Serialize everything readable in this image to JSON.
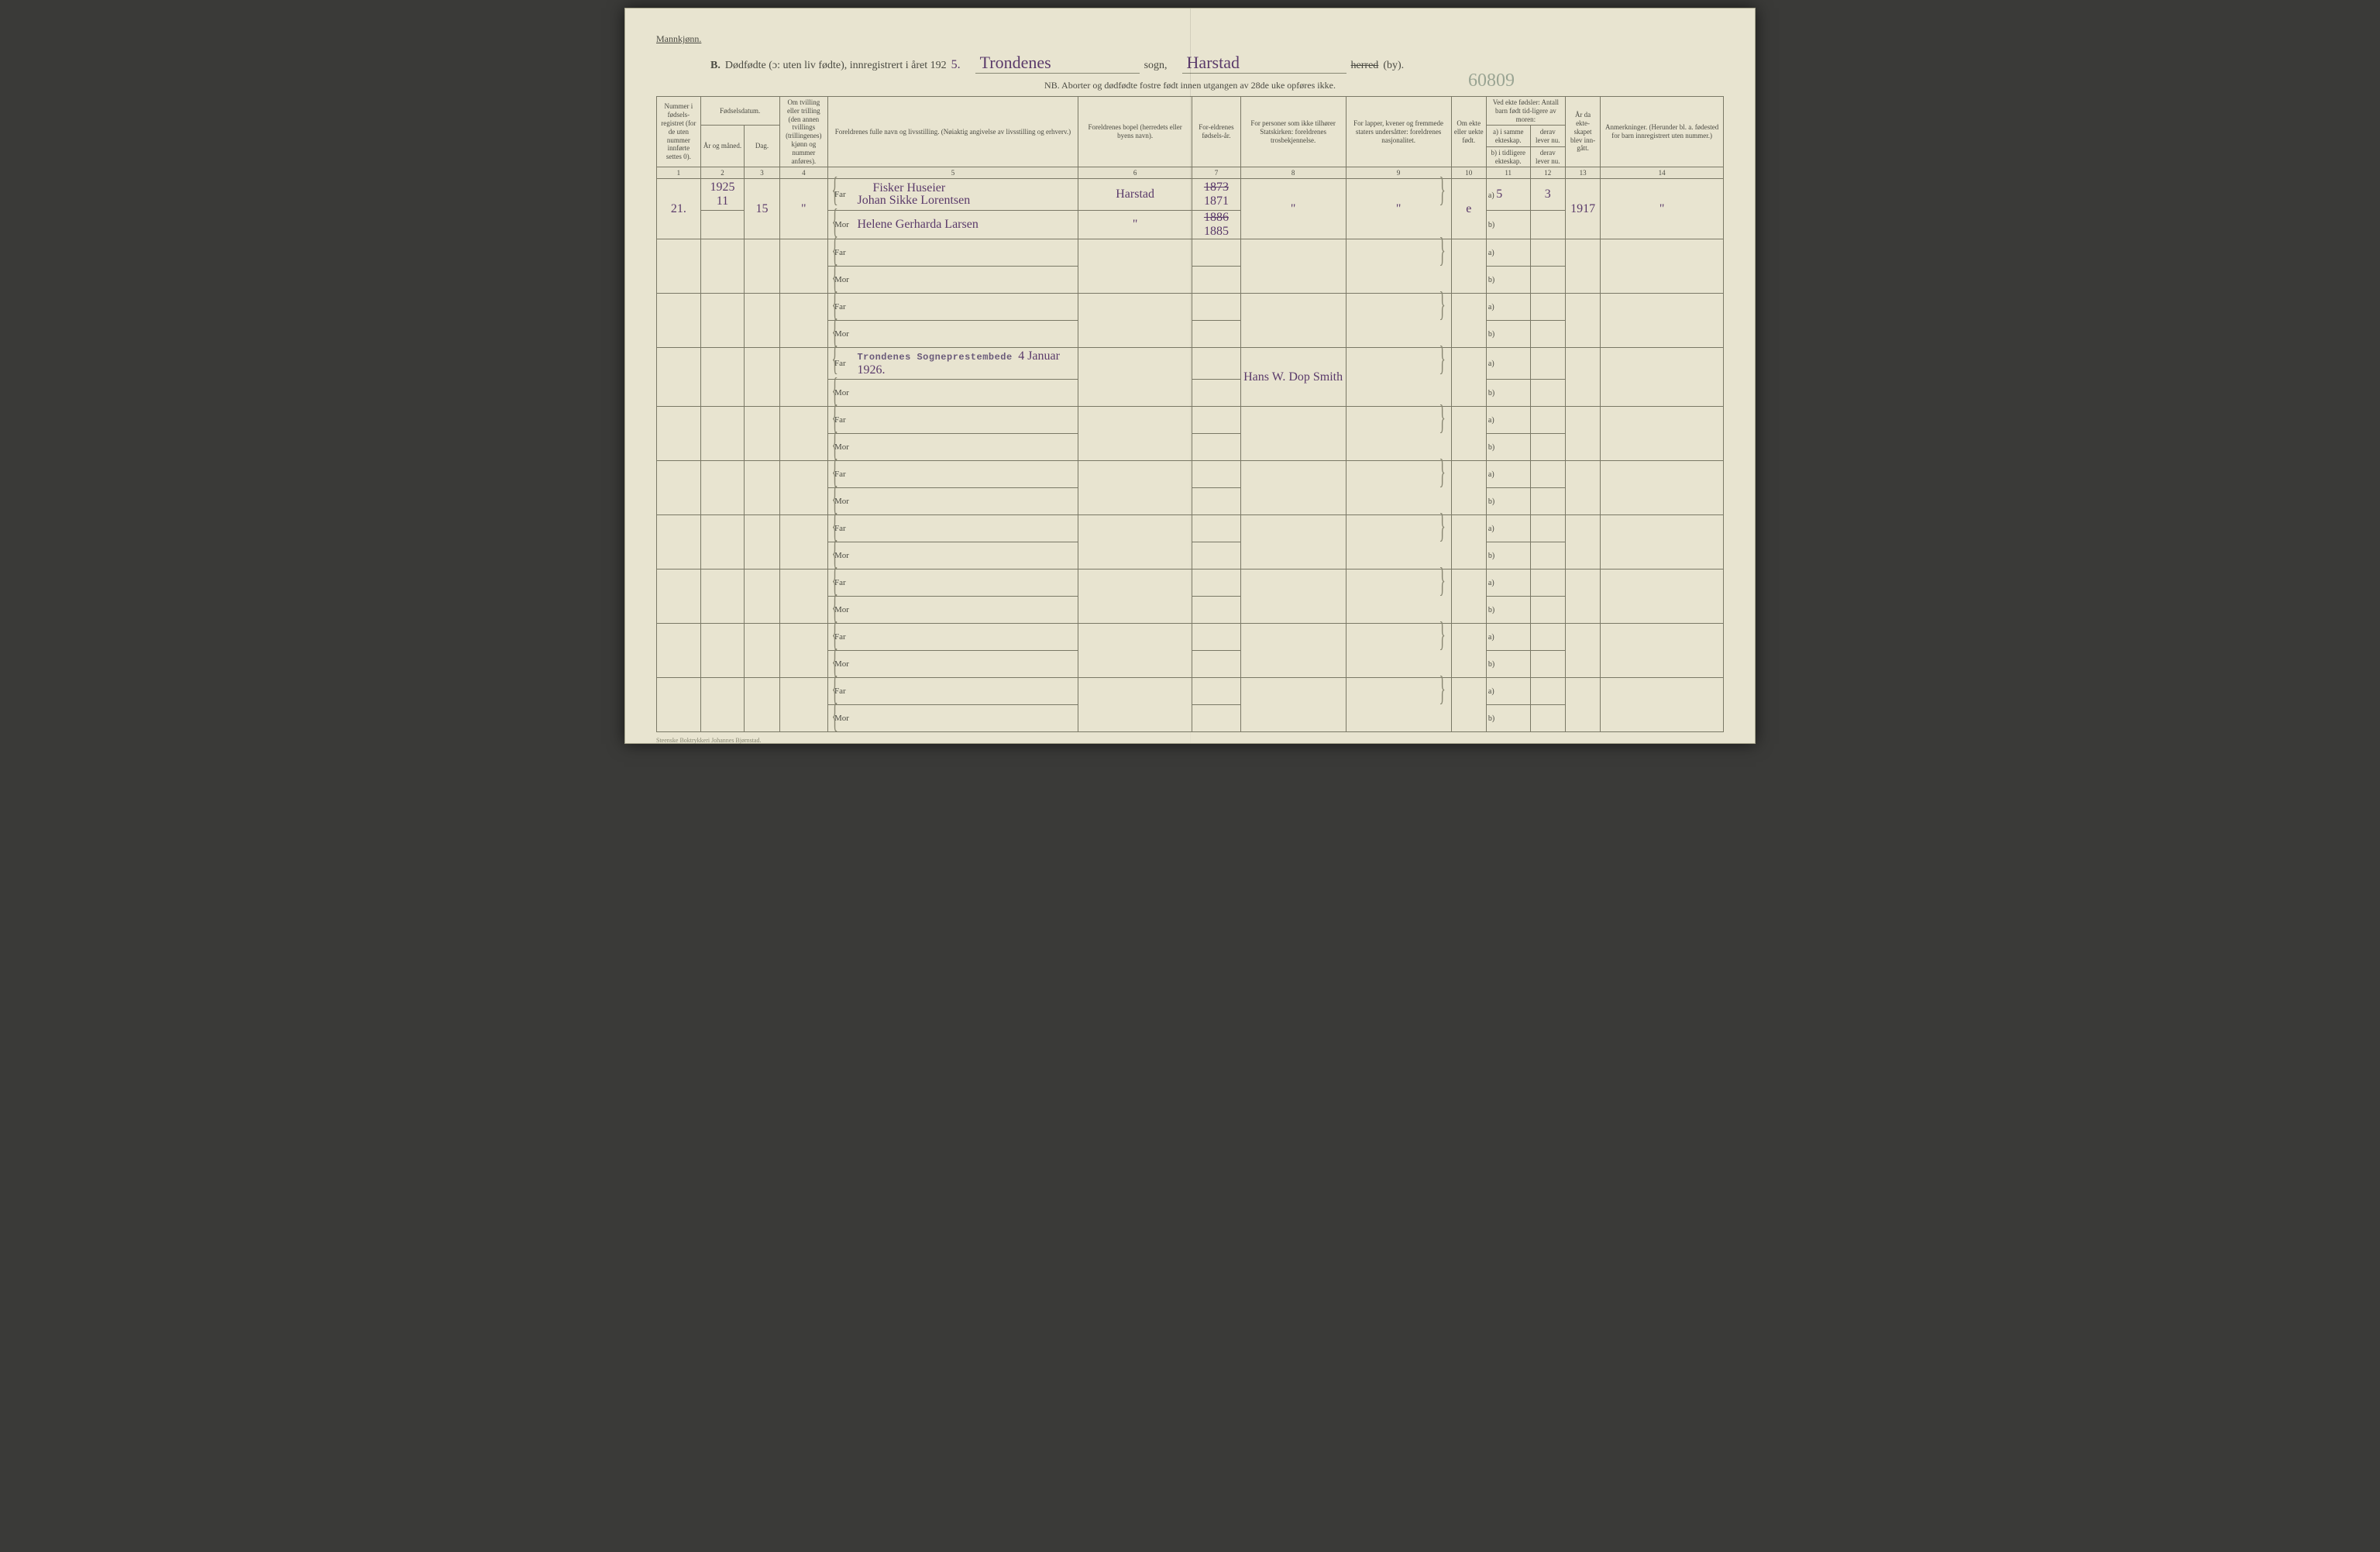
{
  "header": {
    "corner": "Mannkjønn.",
    "line_b": "B.",
    "line_main": "Dødfødte (ɔ: uten liv fødte), innregistrert i året 192",
    "year_suffix": "5.",
    "sogn_val": "Trondenes",
    "sogn_lbl": "sogn,",
    "herred_val": "Harstad",
    "herred_strike": "herred",
    "herred_by": "(by).",
    "nb": "NB. Aborter og dødfødte fostre født innen utgangen av 28de uke opføres ikke.",
    "stamp_number": "60809"
  },
  "cols": {
    "h1": "Nummer i fødsels-registret (for de uten nummer innførte settes 0).",
    "h2": "Fødselsdatum.",
    "h2a": "År og måned.",
    "h2b": "Dag.",
    "h4": "Om tvilling eller trilling (den annen tvillings (trillingenes) kjønn og nummer anføres).",
    "h5": "Foreldrenes fulle navn og livsstilling. (Nøiaktig angivelse av livsstilling og erhverv.)",
    "h6": "Foreldrenes bopel (herredets eller byens navn).",
    "h7": "For-eldrenes fødsels-år.",
    "h8": "For personer som ikke tilhører Statskirken: foreldrenes trosbekjennelse.",
    "h9": "For lapper, kvener og fremmede staters undersåtter: foreldrenes nasjonalitet.",
    "h10": "Om ekte eller uekte født.",
    "h11": "Ved ekte fødsler: Antall barn født tid-ligere av moren:",
    "h11a": "a) i samme ekteskap.",
    "h11b": "derav lever nu.",
    "h11c": "b) i tidligere ekteskap.",
    "h11d": "derav lever nu.",
    "h13": "År da ekte-skapet blev inn-gått.",
    "h14": "Anmerkninger. (Herunder bl. a. fødested for barn innregistrert uten nummer.)",
    "nums": [
      "1",
      "2",
      "3",
      "4",
      "5",
      "6",
      "7",
      "8",
      "9",
      "10",
      "11",
      "12",
      "13",
      "14"
    ]
  },
  "labels": {
    "far": "Far",
    "mor": "Mor",
    "a": "a)",
    "b": "b)"
  },
  "row1": {
    "num": "21.",
    "year": "1925",
    "month": "11",
    "day": "15",
    "tvilling": "\"",
    "far_occup": "Fisker Huseier",
    "far_name": "Johan Sikke Lorentsen",
    "mor_name": "Helene Gerharda Larsen",
    "bopel": "Harstad",
    "far_year_strike": "1873",
    "far_year": "1871",
    "mor_year_strike": "1886",
    "mor_year": "1885",
    "ditto8": "\"",
    "ditto9": "\"",
    "ekte": "e",
    "a_val": "5",
    "a_derav": "3",
    "year_married": "1917",
    "anm": "\""
  },
  "row4": {
    "stamp": "Trondenes Sogneprestembede",
    "date": "4 Januar 1926.",
    "sign": "Hans W. Dop Smith"
  },
  "footer": "Steenske Boktrykkeri Johannes Bjørnstad."
}
